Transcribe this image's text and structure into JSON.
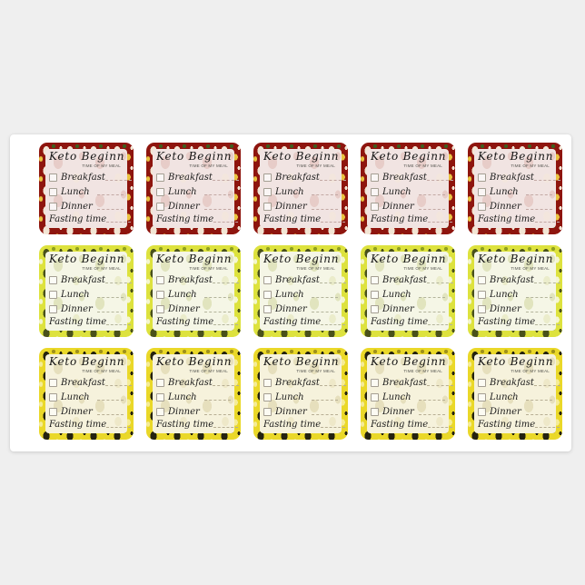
{
  "page": {
    "background": "#efefef"
  },
  "sheet": {
    "background": "#ffffff"
  },
  "grid": {
    "columns": 5,
    "rows": [
      {
        "theme": "strawberry_red"
      },
      {
        "theme": "avocado_green"
      },
      {
        "theme": "avocado_yellow"
      }
    ]
  },
  "sticker": {
    "title": "Keto Beginner",
    "subtitle": "TIME OF MY MEAL",
    "meals": [
      {
        "label": "Breakfast"
      },
      {
        "label": "Lunch"
      },
      {
        "label": "Dinner"
      }
    ],
    "footer_label": "Fasting time",
    "text_color": "#1b1b1b",
    "checkbox_border_color": "#a49e92"
  },
  "themes": {
    "strawberry_red": {
      "name": "strawberry-red-border",
      "border_base": "#8e150e",
      "blob_light": "#f2e5d4",
      "blob_accent": "#e9c341",
      "blob_leaf": "#3e5d1d",
      "inner_background": "#f1e4e2",
      "watermark1": "rgba(222,185,178,0.55)",
      "watermark2": "rgba(244,231,219,0.70)",
      "line_color": "#c2a8a4"
    },
    "avocado_green": {
      "name": "avocado-chartreuse-border",
      "border_base": "#dde23e",
      "blob_light": "#49511a",
      "blob_accent": "#f4f6cf",
      "blob_leaf": "#8fa021",
      "inner_background": "#f5f6e6",
      "watermark1": "rgba(205,210,150,0.50)",
      "watermark2": "rgba(228,231,185,0.60)",
      "line_color": "#b3b49b"
    },
    "avocado_yellow": {
      "name": "avocado-yellow-black-border",
      "border_base": "#ead829",
      "blob_light": "#24220f",
      "blob_accent": "#f5ec96",
      "blob_leaf": "#a0911a",
      "inner_background": "#f6f2dc",
      "watermark1": "rgba(210,200,150,0.45)",
      "watermark2": "rgba(232,224,185,0.55)",
      "line_color": "#b7ae94"
    }
  }
}
